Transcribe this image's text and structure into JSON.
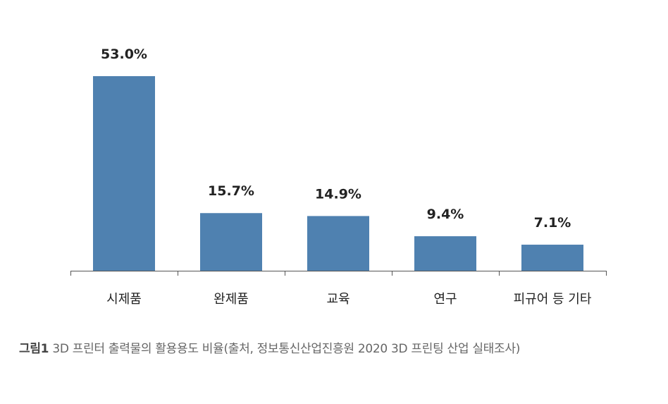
{
  "chart_data": {
    "type": "bar",
    "categories": [
      "시제품",
      "완제품",
      "교육",
      "연구",
      "피규어 등 기타"
    ],
    "values": [
      53.0,
      15.7,
      14.9,
      9.4,
      7.1
    ],
    "value_labels": [
      "53.0%",
      "15.7%",
      "14.9%",
      "9.4%",
      "7.1%"
    ],
    "ylim": [
      0,
      53.0
    ],
    "bar_color": "#4f81b0",
    "grid": false,
    "legend": "none"
  },
  "caption": {
    "label": "그림1",
    "text": " 3D 프린터 출력물의 활용용도 비율(출처, 정보통신산업진흥원 2020 3D 프린팅 산업 실태조사)"
  }
}
